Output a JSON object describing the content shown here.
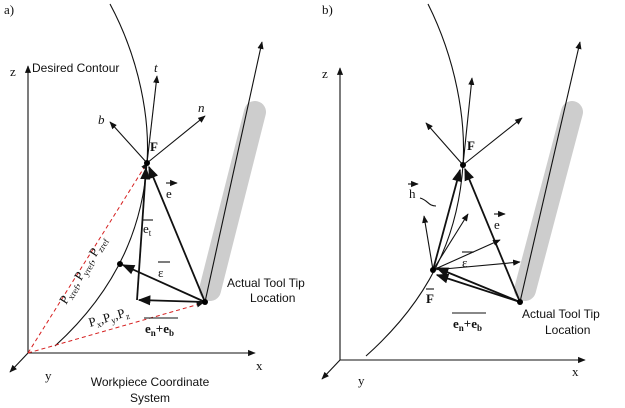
{
  "panel_a": {
    "label": "a)",
    "contour_label": "Desired Contour",
    "frame": {
      "t": "t",
      "n": "n",
      "b": "b"
    },
    "point": "F",
    "axes": {
      "z": "z",
      "y": "y",
      "x": "x"
    },
    "vectors": {
      "e": "e",
      "e_t": {
        "base": "e",
        "sub": "t"
      },
      "epsilon": "ε",
      "e_nb": {
        "a": "e",
        "a_sub": "n",
        "plus": "+",
        "b": "e",
        "b_sub": "b"
      }
    },
    "tool_label": [
      "Actual Tool Tip",
      "Location"
    ],
    "ref_label": {
      "terms": [
        {
          "base": "P",
          "sub": "xref"
        },
        {
          "base": "P",
          "sub": "yref"
        },
        {
          "base": "P",
          "sub": "zref"
        }
      ],
      "separator": ","
    },
    "actual_label": {
      "terms": [
        {
          "base": "P",
          "sub": "x"
        },
        {
          "base": "P",
          "sub": "y"
        },
        {
          "base": "P",
          "sub": "z"
        }
      ],
      "separator": ","
    },
    "system_label": [
      "Workpiece Coordinate",
      "System"
    ]
  },
  "panel_b": {
    "label": "b)",
    "point": "F",
    "point_hat": "F",
    "axes": {
      "z": "z",
      "y": "y",
      "x": "x"
    },
    "vectors": {
      "h": "h",
      "e": "e",
      "epsilon": "ε",
      "e_nb": {
        "a": "e",
        "a_sub": "n",
        "plus": "+",
        "b": "e",
        "b_sub": "b"
      }
    },
    "tool_label": [
      "Actual Tool Tip",
      "Location"
    ]
  }
}
